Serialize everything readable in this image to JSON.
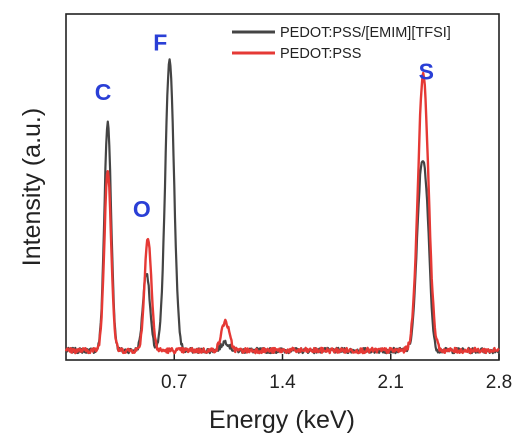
{
  "chart_data": {
    "type": "line",
    "title": "",
    "xlabel": "Energy (keV)",
    "ylabel": "Intensity (a.u.)",
    "xlim": [
      0,
      2.8
    ],
    "ylim": [
      0,
      1.0
    ],
    "x_ticks": [
      "0.7",
      "1.4",
      "2.1",
      "2.8"
    ],
    "y_ticks": [],
    "grid": false,
    "legend_position": "top-right",
    "series": [
      {
        "name": "PEDOT:PSS/[EMIM][TFSI]",
        "color": "#444444",
        "peaks": [
          {
            "label": "C",
            "x": 0.27,
            "height": 0.78,
            "width": 0.022
          },
          {
            "label": "O",
            "x": 0.52,
            "height": 0.27,
            "width": 0.022
          },
          {
            "label": "F",
            "x": 0.67,
            "height": 1.0,
            "width": 0.028
          },
          {
            "label": "",
            "x": 1.03,
            "height": 0.03,
            "width": 0.025
          },
          {
            "label": "S",
            "x": 2.3,
            "height": 0.62,
            "width": 0.03
          },
          {
            "label": "",
            "x": 2.34,
            "height": 0.2,
            "width": 0.02
          }
        ]
      },
      {
        "name": "PEDOT:PSS",
        "color": "#e53935",
        "peaks": [
          {
            "label": "C",
            "x": 0.27,
            "height": 0.62,
            "width": 0.022
          },
          {
            "label": "O",
            "x": 0.53,
            "height": 0.39,
            "width": 0.022
          },
          {
            "label": "",
            "x": 1.03,
            "height": 0.1,
            "width": 0.025
          },
          {
            "label": "S",
            "x": 2.31,
            "height": 0.95,
            "width": 0.034
          }
        ]
      }
    ],
    "annotations": [
      {
        "text": "C",
        "x": 0.24,
        "y": 0.87
      },
      {
        "text": "O",
        "x": 0.49,
        "y": 0.47
      },
      {
        "text": "F",
        "x": 0.61,
        "y": 1.04
      },
      {
        "text": "S",
        "x": 2.33,
        "y": 0.94
      }
    ]
  }
}
